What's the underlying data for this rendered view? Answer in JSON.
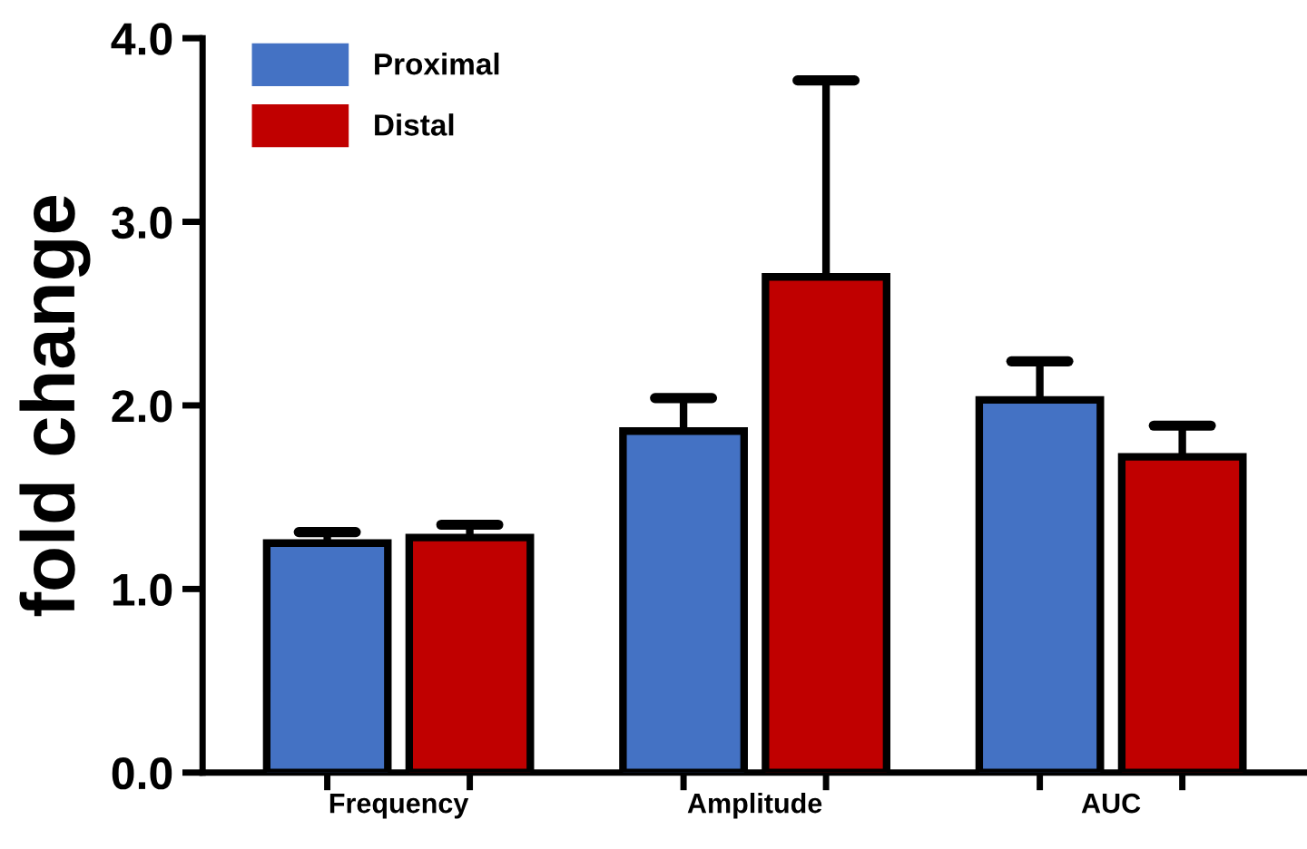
{
  "chart_data": {
    "type": "bar",
    "ylabel": "fold change",
    "categories": [
      "Frequency",
      "Amplitude",
      "AUC"
    ],
    "series": [
      {
        "name": "Proximal",
        "color": "#4472c4",
        "values": [
          1.25,
          1.86,
          2.03
        ],
        "errors": [
          [
            1.25,
            1.31
          ],
          [
            1.86,
            2.04
          ],
          [
            2.03,
            2.24
          ]
        ]
      },
      {
        "name": "Distal",
        "color": "#c00000",
        "values": [
          1.28,
          2.7,
          1.72
        ],
        "errors": [
          [
            1.28,
            1.35
          ],
          [
            2.7,
            3.77
          ],
          [
            1.72,
            1.89
          ]
        ]
      }
    ],
    "ylim": [
      0,
      4
    ],
    "yticks": [
      {
        "value": 0,
        "label": "0.0"
      },
      {
        "value": 1,
        "label": "1.0"
      },
      {
        "value": 2,
        "label": "2.0"
      },
      {
        "value": 3,
        "label": "3.0"
      },
      {
        "value": 4,
        "label": "4.0"
      }
    ],
    "grid": false,
    "legend": "top left"
  }
}
